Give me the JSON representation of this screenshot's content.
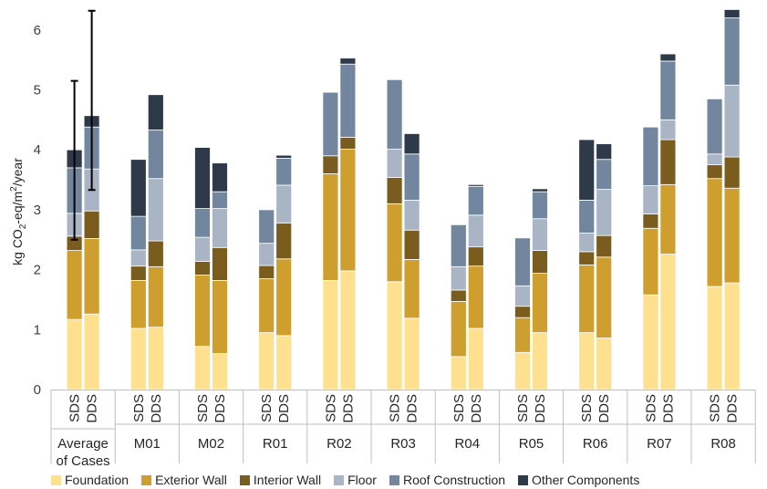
{
  "chart_data": {
    "type": "bar",
    "stacked": true,
    "ylabel": "kg CO₂-eq/m²/year",
    "ylim": [
      0,
      6.5
    ],
    "yticks": [
      0,
      1,
      2,
      3,
      4,
      5,
      6
    ],
    "grid": false,
    "legend_position": "bottom",
    "groups": [
      "Average of Cases",
      "M01",
      "M02",
      "R01",
      "R02",
      "R03",
      "R04",
      "R05",
      "R06",
      "R07",
      "R08"
    ],
    "subcategories": [
      "SDS",
      "DDS"
    ],
    "series": [
      {
        "name": "Foundation",
        "color": "#FFE08F",
        "values": [
          1.17,
          1.26,
          1.02,
          1.04,
          0.72,
          0.6,
          0.95,
          0.9,
          1.82,
          1.98,
          1.8,
          1.19,
          0.55,
          1.02,
          0.62,
          0.95,
          0.95,
          0.86,
          1.58,
          2.26,
          1.72,
          1.78
        ]
      },
      {
        "name": "Exterior Wall",
        "color": "#CE9E2E",
        "values": [
          1.15,
          1.26,
          0.8,
          1.01,
          1.19,
          1.22,
          0.9,
          1.28,
          1.78,
          2.03,
          1.3,
          0.98,
          0.92,
          1.04,
          0.58,
          0.99,
          1.13,
          1.35,
          1.11,
          1.16,
          1.8,
          1.58
        ]
      },
      {
        "name": "Interior Wall",
        "color": "#7B5C1F",
        "values": [
          0.24,
          0.46,
          0.24,
          0.43,
          0.23,
          0.55,
          0.22,
          0.6,
          0.3,
          0.2,
          0.44,
          0.49,
          0.19,
          0.32,
          0.19,
          0.38,
          0.22,
          0.36,
          0.24,
          0.75,
          0.23,
          0.52
        ]
      },
      {
        "name": "Floor",
        "color": "#A9B5C4",
        "values": [
          0.38,
          0.7,
          0.27,
          1.04,
          0.4,
          0.65,
          0.37,
          0.63,
          0.0,
          0.0,
          0.47,
          0.5,
          0.39,
          0.53,
          0.34,
          0.53,
          0.31,
          0.77,
          0.47,
          0.33,
          0.18,
          1.2
        ]
      },
      {
        "name": "Roof Construction",
        "color": "#73869F",
        "values": [
          0.76,
          0.7,
          0.56,
          0.81,
          0.48,
          0.28,
          0.56,
          0.45,
          1.06,
          1.22,
          1.16,
          0.77,
          0.7,
          0.48,
          0.8,
          0.45,
          0.55,
          0.5,
          0.98,
          0.98,
          0.92,
          1.12
        ]
      },
      {
        "name": "Other Components",
        "color": "#2E3A4A",
        "values": [
          0.3,
          0.19,
          0.95,
          0.59,
          1.02,
          0.48,
          0.0,
          0.05,
          0.0,
          0.1,
          0.0,
          0.34,
          0.0,
          0.03,
          0.0,
          0.05,
          1.01,
          0.26,
          0.0,
          0.12,
          0.0,
          0.14
        ]
      }
    ],
    "error_bars": [
      {
        "group": "Average of Cases",
        "subcategory": "SDS",
        "low": 2.5,
        "high": 5.15
      },
      {
        "group": "Average of Cases",
        "subcategory": "DDS",
        "low": 3.33,
        "high": 6.32
      }
    ]
  }
}
